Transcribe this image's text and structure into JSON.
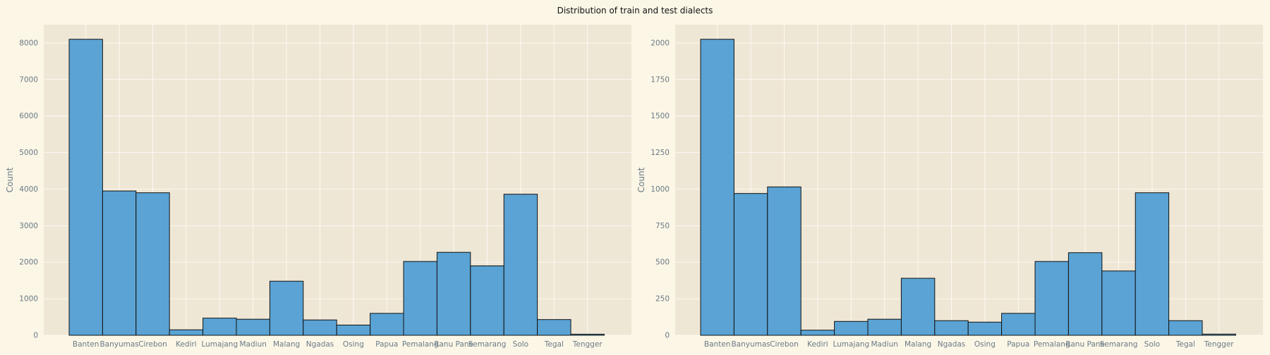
{
  "figure": {
    "title": "Distribution of train and test dialects"
  },
  "colors": {
    "figure_background": "#fbf6e6",
    "axes_background": "#efe7d5",
    "bar_fill": "#5aa3d4",
    "bar_edge": "#111111",
    "grid": "#ffffff",
    "tick_text": "#6b7a86"
  },
  "chart_data": [
    {
      "type": "bar",
      "title": "",
      "xlabel": "",
      "ylabel": "Count",
      "categories": [
        "Banten",
        "Banyumas",
        "Cirebon",
        "Kediri",
        "Lumajang",
        "Madiun",
        "Malang",
        "Ngadas",
        "Osing",
        "Papua",
        "Pemalang",
        "Ranu Pane",
        "Semarang",
        "Solo",
        "Tegal",
        "Tengger"
      ],
      "values": [
        8100,
        3950,
        3900,
        150,
        470,
        440,
        1480,
        420,
        280,
        600,
        2020,
        2270,
        1900,
        3860,
        430,
        30
      ],
      "ylim": [
        0,
        8500
      ],
      "yticks": [
        0,
        1000,
        2000,
        3000,
        4000,
        5000,
        6000,
        7000,
        8000
      ],
      "grid": true,
      "legend": "none"
    },
    {
      "type": "bar",
      "title": "",
      "xlabel": "",
      "ylabel": "Count",
      "categories": [
        "Banten",
        "Banyumas",
        "Cirebon",
        "Kediri",
        "Lumajang",
        "Madiun",
        "Malang",
        "Ngadas",
        "Osing",
        "Papua",
        "Pemalang",
        "Ranu Pane",
        "Semarang",
        "Solo",
        "Tegal",
        "Tengger"
      ],
      "values": [
        2025,
        970,
        1015,
        35,
        95,
        110,
        390,
        100,
        90,
        150,
        505,
        565,
        440,
        975,
        100,
        8
      ],
      "ylim": [
        0,
        2125
      ],
      "yticks": [
        0,
        250,
        500,
        750,
        1000,
        1250,
        1500,
        1750,
        2000
      ],
      "grid": true,
      "legend": "none"
    }
  ]
}
